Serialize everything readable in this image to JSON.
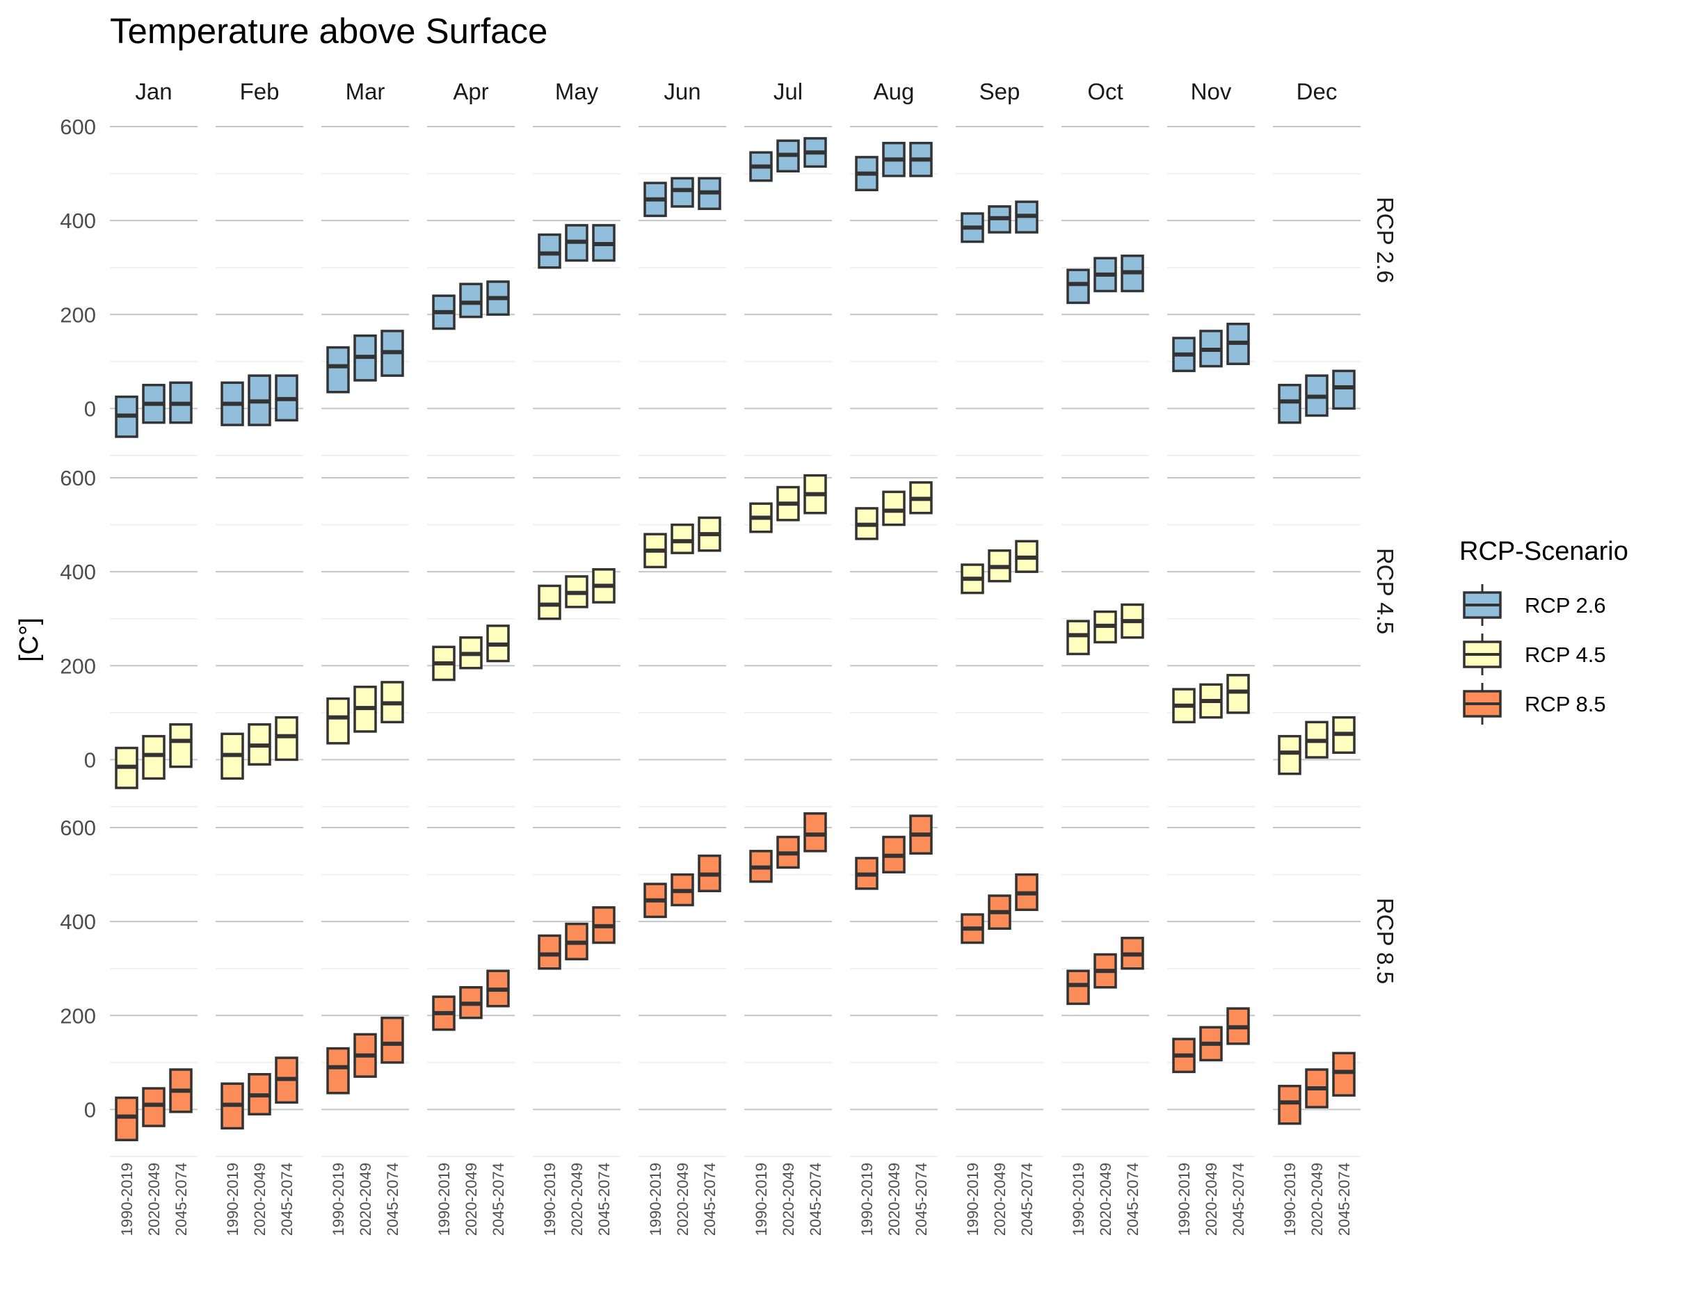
{
  "chart_data": {
    "type": "boxplot",
    "title": "Temperature above Surface",
    "ylabel": "[C°]",
    "xlabel": "",
    "ylim": [
      -100,
      640
    ],
    "yticks": [
      0,
      200,
      400,
      600
    ],
    "grid": true,
    "months": [
      "Jan",
      "Feb",
      "Mar",
      "Apr",
      "May",
      "Jun",
      "Jul",
      "Aug",
      "Sep",
      "Oct",
      "Nov",
      "Dec"
    ],
    "periods": [
      "1990-2019",
      "2020-2049",
      "2045-2074"
    ],
    "legend": {
      "title": "RCP-Scenario",
      "position": "right",
      "items": [
        {
          "label": "RCP 2.6",
          "color": "#91BFDB"
        },
        {
          "label": "RCP 4.5",
          "color": "#FFFFBF"
        },
        {
          "label": "RCP 8.5",
          "color": "#FC8D59"
        }
      ]
    },
    "panels": [
      {
        "label": "RCP 2.6",
        "color": "#91BFDB",
        "boxes": [
          [
            [
              -60,
              -15,
              25
            ],
            [
              -30,
              10,
              50
            ],
            [
              -30,
              10,
              55
            ]
          ],
          [
            [
              -35,
              10,
              55
            ],
            [
              -35,
              15,
              70
            ],
            [
              -25,
              20,
              70
            ]
          ],
          [
            [
              35,
              90,
              130
            ],
            [
              60,
              110,
              155
            ],
            [
              70,
              120,
              165
            ]
          ],
          [
            [
              170,
              205,
              240
            ],
            [
              195,
              225,
              265
            ],
            [
              200,
              235,
              270
            ]
          ],
          [
            [
              300,
              330,
              370
            ],
            [
              315,
              355,
              390
            ],
            [
              315,
              350,
              390
            ]
          ],
          [
            [
              410,
              445,
              480
            ],
            [
              430,
              465,
              490
            ],
            [
              425,
              460,
              490
            ]
          ],
          [
            [
              485,
              515,
              545
            ],
            [
              505,
              540,
              570
            ],
            [
              515,
              545,
              575
            ]
          ],
          [
            [
              465,
              500,
              535
            ],
            [
              495,
              530,
              565
            ],
            [
              495,
              530,
              565
            ]
          ],
          [
            [
              355,
              385,
              415
            ],
            [
              375,
              405,
              430
            ],
            [
              375,
              410,
              440
            ]
          ],
          [
            [
              225,
              265,
              295
            ],
            [
              250,
              285,
              320
            ],
            [
              250,
              290,
              325
            ]
          ],
          [
            [
              80,
              115,
              150
            ],
            [
              90,
              125,
              165
            ],
            [
              95,
              140,
              180
            ]
          ],
          [
            [
              -30,
              15,
              50
            ],
            [
              -15,
              25,
              70
            ],
            [
              0,
              45,
              80
            ]
          ]
        ]
      },
      {
        "label": "RCP 4.5",
        "color": "#FFFFBF",
        "boxes": [
          [
            [
              -60,
              -15,
              25
            ],
            [
              -40,
              10,
              50
            ],
            [
              -15,
              40,
              75
            ]
          ],
          [
            [
              -40,
              10,
              55
            ],
            [
              -10,
              30,
              75
            ],
            [
              0,
              50,
              90
            ]
          ],
          [
            [
              35,
              90,
              130
            ],
            [
              60,
              110,
              155
            ],
            [
              80,
              120,
              165
            ]
          ],
          [
            [
              170,
              205,
              240
            ],
            [
              195,
              225,
              260
            ],
            [
              210,
              245,
              285
            ]
          ],
          [
            [
              300,
              330,
              370
            ],
            [
              325,
              355,
              390
            ],
            [
              335,
              370,
              405
            ]
          ],
          [
            [
              410,
              445,
              480
            ],
            [
              440,
              465,
              500
            ],
            [
              445,
              480,
              515
            ]
          ],
          [
            [
              485,
              515,
              545
            ],
            [
              510,
              545,
              580
            ],
            [
              525,
              565,
              605
            ]
          ],
          [
            [
              470,
              500,
              535
            ],
            [
              500,
              530,
              570
            ],
            [
              525,
              555,
              590
            ]
          ],
          [
            [
              355,
              385,
              415
            ],
            [
              380,
              410,
              445
            ],
            [
              400,
              430,
              465
            ]
          ],
          [
            [
              225,
              265,
              295
            ],
            [
              250,
              285,
              315
            ],
            [
              260,
              295,
              330
            ]
          ],
          [
            [
              80,
              115,
              150
            ],
            [
              90,
              125,
              160
            ],
            [
              100,
              145,
              180
            ]
          ],
          [
            [
              -30,
              15,
              50
            ],
            [
              5,
              40,
              80
            ],
            [
              15,
              55,
              90
            ]
          ]
        ]
      },
      {
        "label": "RCP 8.5",
        "color": "#FC8D59",
        "boxes": [
          [
            [
              -65,
              -15,
              25
            ],
            [
              -35,
              10,
              45
            ],
            [
              -5,
              40,
              85
            ]
          ],
          [
            [
              -40,
              10,
              55
            ],
            [
              -10,
              30,
              75
            ],
            [
              15,
              65,
              110
            ]
          ],
          [
            [
              35,
              90,
              130
            ],
            [
              70,
              115,
              160
            ],
            [
              100,
              140,
              195
            ]
          ],
          [
            [
              170,
              205,
              240
            ],
            [
              195,
              225,
              260
            ],
            [
              220,
              255,
              295
            ]
          ],
          [
            [
              300,
              330,
              370
            ],
            [
              320,
              355,
              395
            ],
            [
              355,
              390,
              430
            ]
          ],
          [
            [
              410,
              445,
              480
            ],
            [
              435,
              465,
              500
            ],
            [
              465,
              500,
              540
            ]
          ],
          [
            [
              485,
              515,
              550
            ],
            [
              515,
              545,
              580
            ],
            [
              550,
              585,
              630
            ]
          ],
          [
            [
              470,
              500,
              535
            ],
            [
              505,
              540,
              580
            ],
            [
              545,
              585,
              625
            ]
          ],
          [
            [
              355,
              385,
              415
            ],
            [
              385,
              420,
              455
            ],
            [
              425,
              460,
              500
            ]
          ],
          [
            [
              225,
              265,
              295
            ],
            [
              260,
              295,
              330
            ],
            [
              300,
              330,
              365
            ]
          ],
          [
            [
              80,
              115,
              150
            ],
            [
              105,
              140,
              175
            ],
            [
              140,
              175,
              215
            ]
          ],
          [
            [
              -30,
              15,
              50
            ],
            [
              5,
              45,
              85
            ],
            [
              30,
              80,
              120
            ]
          ]
        ]
      }
    ]
  }
}
